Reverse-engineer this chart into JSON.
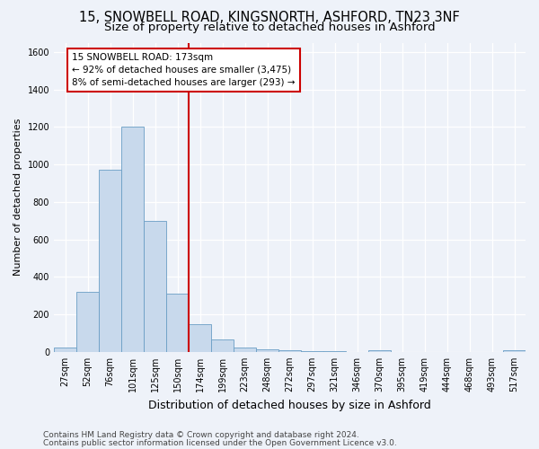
{
  "title_line1": "15, SNOWBELL ROAD, KINGSNORTH, ASHFORD, TN23 3NF",
  "title_line2": "Size of property relative to detached houses in Ashford",
  "xlabel": "Distribution of detached houses by size in Ashford",
  "ylabel": "Number of detached properties",
  "categories": [
    "27sqm",
    "52sqm",
    "76sqm",
    "101sqm",
    "125sqm",
    "150sqm",
    "174sqm",
    "199sqm",
    "223sqm",
    "248sqm",
    "272sqm",
    "297sqm",
    "321sqm",
    "346sqm",
    "370sqm",
    "395sqm",
    "419sqm",
    "444sqm",
    "468sqm",
    "493sqm",
    "517sqm"
  ],
  "values": [
    25,
    320,
    970,
    1200,
    700,
    310,
    150,
    65,
    25,
    15,
    10,
    5,
    5,
    0,
    10,
    0,
    0,
    0,
    0,
    0,
    10
  ],
  "bar_color": "#c8d9ec",
  "bar_edge_color": "#6a9ec5",
  "highlight_line_index": 6,
  "highlight_line_color": "#cc0000",
  "annotation_line1": "15 SNOWBELL ROAD: 173sqm",
  "annotation_line2": "← 92% of detached houses are smaller (3,475)",
  "annotation_line3": "8% of semi-detached houses are larger (293) →",
  "annotation_box_color": "#ffffff",
  "annotation_box_edge_color": "#cc0000",
  "ylim": [
    0,
    1650
  ],
  "yticks": [
    0,
    200,
    400,
    600,
    800,
    1000,
    1200,
    1400,
    1600
  ],
  "footer_line1": "Contains HM Land Registry data © Crown copyright and database right 2024.",
  "footer_line2": "Contains public sector information licensed under the Open Government Licence v3.0.",
  "background_color": "#eef2f9",
  "plot_bg_color": "#eef2f9",
  "title_fontsize": 10.5,
  "subtitle_fontsize": 9.5,
  "xlabel_fontsize": 9,
  "ylabel_fontsize": 8,
  "tick_fontsize": 7,
  "annotation_fontsize": 7.5,
  "footer_fontsize": 6.5
}
